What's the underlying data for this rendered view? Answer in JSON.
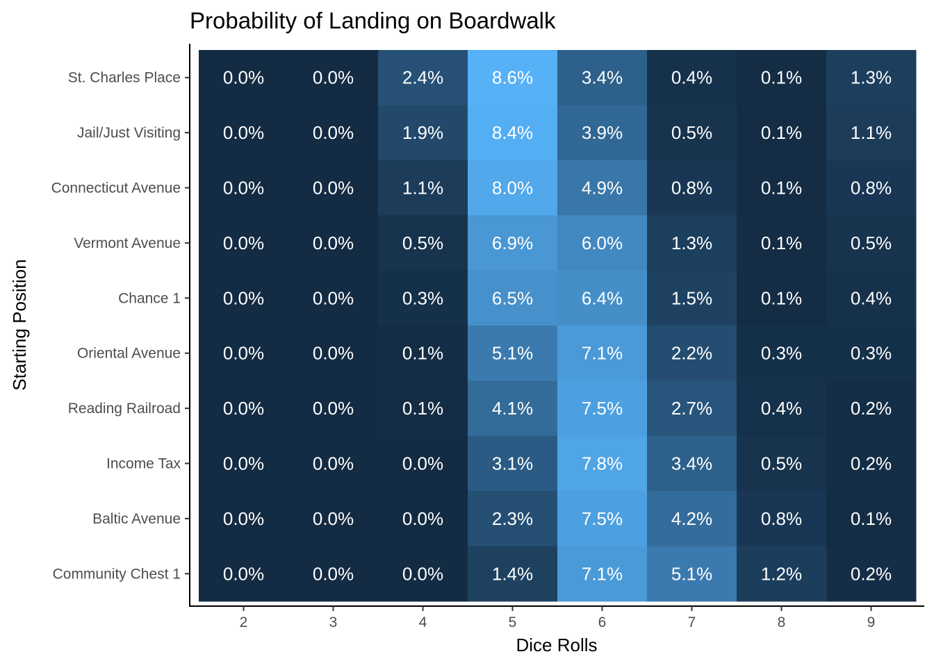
{
  "chart_data": {
    "type": "heatmap",
    "title": "Probability of Landing on Boardwalk",
    "xlabel": "Dice Rolls",
    "ylabel": "Starting Position",
    "categories": [
      "2",
      "3",
      "4",
      "5",
      "6",
      "7",
      "8",
      "9"
    ],
    "rows": [
      "St. Charles Place",
      "Jail/Just Visiting",
      "Connecticut Avenue",
      "Vermont Avenue",
      "Chance 1",
      "Oriental Avenue",
      "Reading Railroad",
      "Income Tax",
      "Baltic Avenue",
      "Community Chest 1"
    ],
    "values": [
      [
        0.0,
        0.0,
        2.4,
        8.6,
        3.4,
        0.4,
        0.1,
        1.3
      ],
      [
        0.0,
        0.0,
        1.9,
        8.4,
        3.9,
        0.5,
        0.1,
        1.1
      ],
      [
        0.0,
        0.0,
        1.1,
        8.0,
        4.9,
        0.8,
        0.1,
        0.8
      ],
      [
        0.0,
        0.0,
        0.5,
        6.9,
        6.0,
        1.3,
        0.1,
        0.5
      ],
      [
        0.0,
        0.0,
        0.3,
        6.5,
        6.4,
        1.5,
        0.1,
        0.4
      ],
      [
        0.0,
        0.0,
        0.1,
        5.1,
        7.1,
        2.2,
        0.3,
        0.3
      ],
      [
        0.0,
        0.0,
        0.1,
        4.1,
        7.5,
        2.7,
        0.4,
        0.2
      ],
      [
        0.0,
        0.0,
        0.0,
        3.1,
        7.8,
        3.4,
        0.5,
        0.2
      ],
      [
        0.0,
        0.0,
        0.0,
        2.3,
        7.5,
        4.2,
        0.8,
        0.1
      ],
      [
        0.0,
        0.0,
        0.0,
        1.4,
        7.1,
        5.1,
        1.2,
        0.2
      ]
    ],
    "value_suffix": "%",
    "color_low": "#132b43",
    "color_high": "#56b1f7",
    "legend": "none",
    "grid": false
  }
}
